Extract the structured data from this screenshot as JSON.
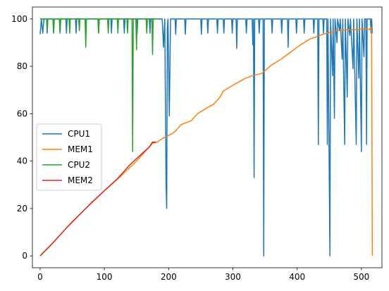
{
  "chart_data": {
    "type": "line",
    "title": "",
    "xlabel": "",
    "ylabel": "",
    "xlim": [
      -12,
      532
    ],
    "ylim": [
      -5,
      105
    ],
    "xticks": [
      0,
      100,
      200,
      300,
      400,
      500
    ],
    "yticks": [
      0,
      20,
      40,
      60,
      80,
      100
    ],
    "grid": false,
    "legend_position": "center-left",
    "series": [
      {
        "name": "CPU1",
        "color": "#1f77b4",
        "points": [
          [
            0,
            93.5
          ],
          [
            2,
            100
          ],
          [
            4,
            94
          ],
          [
            6,
            100
          ],
          [
            10,
            100
          ],
          [
            11,
            94
          ],
          [
            12,
            100
          ],
          [
            20,
            100
          ],
          [
            21,
            94
          ],
          [
            22,
            100
          ],
          [
            30,
            100
          ],
          [
            31,
            94
          ],
          [
            32,
            100
          ],
          [
            40,
            100
          ],
          [
            41,
            94
          ],
          [
            42,
            100
          ],
          [
            55,
            100
          ],
          [
            56,
            94
          ],
          [
            57,
            100
          ],
          [
            70,
            100
          ],
          [
            71,
            94
          ],
          [
            72,
            100
          ],
          [
            90,
            100
          ],
          [
            91,
            94
          ],
          [
            92,
            100
          ],
          [
            110,
            100
          ],
          [
            111,
            94
          ],
          [
            112,
            100
          ],
          [
            130,
            100
          ],
          [
            131,
            94
          ],
          [
            132,
            100
          ],
          [
            150,
            100
          ],
          [
            151,
            94
          ],
          [
            152,
            100
          ],
          [
            170,
            100
          ],
          [
            171,
            94
          ],
          [
            172,
            100
          ],
          [
            190,
            100
          ],
          [
            192,
            88
          ],
          [
            194,
            100
          ],
          [
            196,
            30
          ],
          [
            197,
            20
          ],
          [
            198,
            96
          ],
          [
            199,
            100
          ],
          [
            201,
            59
          ],
          [
            203,
            100
          ],
          [
            210,
            100
          ],
          [
            211,
            93.5
          ],
          [
            212,
            100
          ],
          [
            225,
            100
          ],
          [
            226,
            93.5
          ],
          [
            227,
            100
          ],
          [
            250,
            100
          ],
          [
            251,
            93.5
          ],
          [
            252,
            100
          ],
          [
            260,
            100
          ],
          [
            261,
            94
          ],
          [
            262,
            100
          ],
          [
            275,
            100
          ],
          [
            276,
            94
          ],
          [
            277,
            100
          ],
          [
            285,
            100
          ],
          [
            286,
            94
          ],
          [
            287,
            100
          ],
          [
            298,
            100
          ],
          [
            299,
            94
          ],
          [
            300,
            100
          ],
          [
            305,
            100
          ],
          [
            306,
            87.5
          ],
          [
            307,
            100
          ],
          [
            320,
            100
          ],
          [
            321,
            94
          ],
          [
            322,
            100
          ],
          [
            330,
            100
          ],
          [
            331,
            89
          ],
          [
            332,
            100
          ],
          [
            333,
            33
          ],
          [
            334,
            100
          ],
          [
            340,
            100
          ],
          [
            341,
            94
          ],
          [
            342,
            100
          ],
          [
            347,
            100
          ],
          [
            348,
            0
          ],
          [
            349,
            100
          ],
          [
            360,
            100
          ],
          [
            361,
            94
          ],
          [
            362,
            100
          ],
          [
            375,
            100
          ],
          [
            376,
            94
          ],
          [
            377,
            100
          ],
          [
            385,
            100
          ],
          [
            386,
            88
          ],
          [
            387,
            100
          ],
          [
            398,
            100
          ],
          [
            399,
            94
          ],
          [
            400,
            100
          ],
          [
            410,
            100
          ],
          [
            411,
            94
          ],
          [
            412,
            100
          ],
          [
            425,
            100
          ],
          [
            426,
            94
          ],
          [
            427,
            100
          ],
          [
            432,
            100
          ],
          [
            433,
            47
          ],
          [
            434,
            100
          ],
          [
            440,
            100
          ],
          [
            441,
            94
          ],
          [
            442,
            100
          ],
          [
            446,
            100
          ],
          [
            447,
            47
          ],
          [
            448,
            100
          ],
          [
            451,
            0
          ],
          [
            452,
            100
          ],
          [
            455,
            76
          ],
          [
            456,
            100
          ],
          [
            458,
            58
          ],
          [
            459,
            100
          ],
          [
            462,
            90
          ],
          [
            463,
            100
          ],
          [
            466,
            95
          ],
          [
            467,
            100
          ],
          [
            470,
            83
          ],
          [
            471,
            100
          ],
          [
            474,
            47
          ],
          [
            475,
            100
          ],
          [
            478,
            67
          ],
          [
            479,
            100
          ],
          [
            482,
            93
          ],
          [
            483,
            100
          ],
          [
            487,
            79
          ],
          [
            488,
            100
          ],
          [
            492,
            47
          ],
          [
            493,
            100
          ],
          [
            496,
            75
          ],
          [
            497,
            100
          ],
          [
            500,
            44
          ],
          [
            501,
            100
          ],
          [
            504,
            84
          ],
          [
            505,
            100
          ],
          [
            507,
            100
          ],
          [
            508,
            47
          ],
          [
            509,
            100
          ],
          [
            514,
            100
          ],
          [
            515,
            94
          ],
          [
            516,
            100
          ],
          [
            517,
            94
          ]
        ]
      },
      {
        "name": "MEM1",
        "color": "#ff7f0e",
        "points": [
          [
            0,
            0
          ],
          [
            25,
            7
          ],
          [
            50,
            14.5
          ],
          [
            75,
            21
          ],
          [
            100,
            27.5
          ],
          [
            125,
            33.5
          ],
          [
            150,
            40
          ],
          [
            165,
            44.5
          ],
          [
            175,
            47.5
          ],
          [
            182,
            48
          ],
          [
            190,
            49.5
          ],
          [
            205,
            51.5
          ],
          [
            210,
            52.5
          ],
          [
            220,
            55.5
          ],
          [
            235,
            57
          ],
          [
            245,
            60
          ],
          [
            260,
            62.5
          ],
          [
            270,
            64
          ],
          [
            280,
            67
          ],
          [
            285,
            69.5
          ],
          [
            300,
            72
          ],
          [
            310,
            73.5
          ],
          [
            320,
            75
          ],
          [
            330,
            76
          ],
          [
            345,
            77
          ],
          [
            360,
            80.5
          ],
          [
            375,
            83
          ],
          [
            390,
            86
          ],
          [
            405,
            89
          ],
          [
            420,
            91.5
          ],
          [
            440,
            93.5
          ],
          [
            460,
            95
          ],
          [
            480,
            95.5
          ],
          [
            495,
            95.5
          ],
          [
            505,
            96
          ],
          [
            512,
            95.5
          ],
          [
            515,
            96.5
          ],
          [
            516,
            95
          ],
          [
            517,
            0
          ]
        ]
      },
      {
        "name": "CPU2",
        "color": "#2ca02c",
        "points": [
          [
            0,
            100
          ],
          [
            10,
            100
          ],
          [
            11,
            95
          ],
          [
            12,
            100
          ],
          [
            20,
            100
          ],
          [
            21,
            94
          ],
          [
            22,
            100
          ],
          [
            30,
            100
          ],
          [
            31,
            94
          ],
          [
            32,
            100
          ],
          [
            45,
            100
          ],
          [
            46,
            94
          ],
          [
            47,
            100
          ],
          [
            60,
            100
          ],
          [
            61,
            95
          ],
          [
            62,
            100
          ],
          [
            70,
            100
          ],
          [
            71,
            88
          ],
          [
            72,
            100
          ],
          [
            90,
            100
          ],
          [
            91,
            94
          ],
          [
            92,
            100
          ],
          [
            105,
            100
          ],
          [
            106,
            94
          ],
          [
            107,
            100
          ],
          [
            120,
            100
          ],
          [
            121,
            94
          ],
          [
            122,
            100
          ],
          [
            135,
            100
          ],
          [
            136,
            94
          ],
          [
            137,
            100
          ],
          [
            143,
            100
          ],
          [
            144,
            44
          ],
          [
            145,
            100
          ],
          [
            149,
            100
          ],
          [
            150,
            87
          ],
          [
            151,
            100
          ],
          [
            165,
            100
          ],
          [
            166,
            94
          ],
          [
            167,
            100
          ],
          [
            174,
            100
          ],
          [
            175,
            85
          ],
          [
            176,
            100
          ],
          [
            180,
            100
          ]
        ]
      },
      {
        "name": "MEM2",
        "color": "#d62728",
        "points": [
          [
            0,
            0
          ],
          [
            20,
            5.5
          ],
          [
            40,
            11.5
          ],
          [
            60,
            17
          ],
          [
            80,
            22.5
          ],
          [
            100,
            27.5
          ],
          [
            120,
            32.5
          ],
          [
            140,
            38.5
          ],
          [
            160,
            43.5
          ],
          [
            170,
            46
          ],
          [
            175,
            48
          ],
          [
            180,
            48
          ]
        ]
      }
    ]
  }
}
